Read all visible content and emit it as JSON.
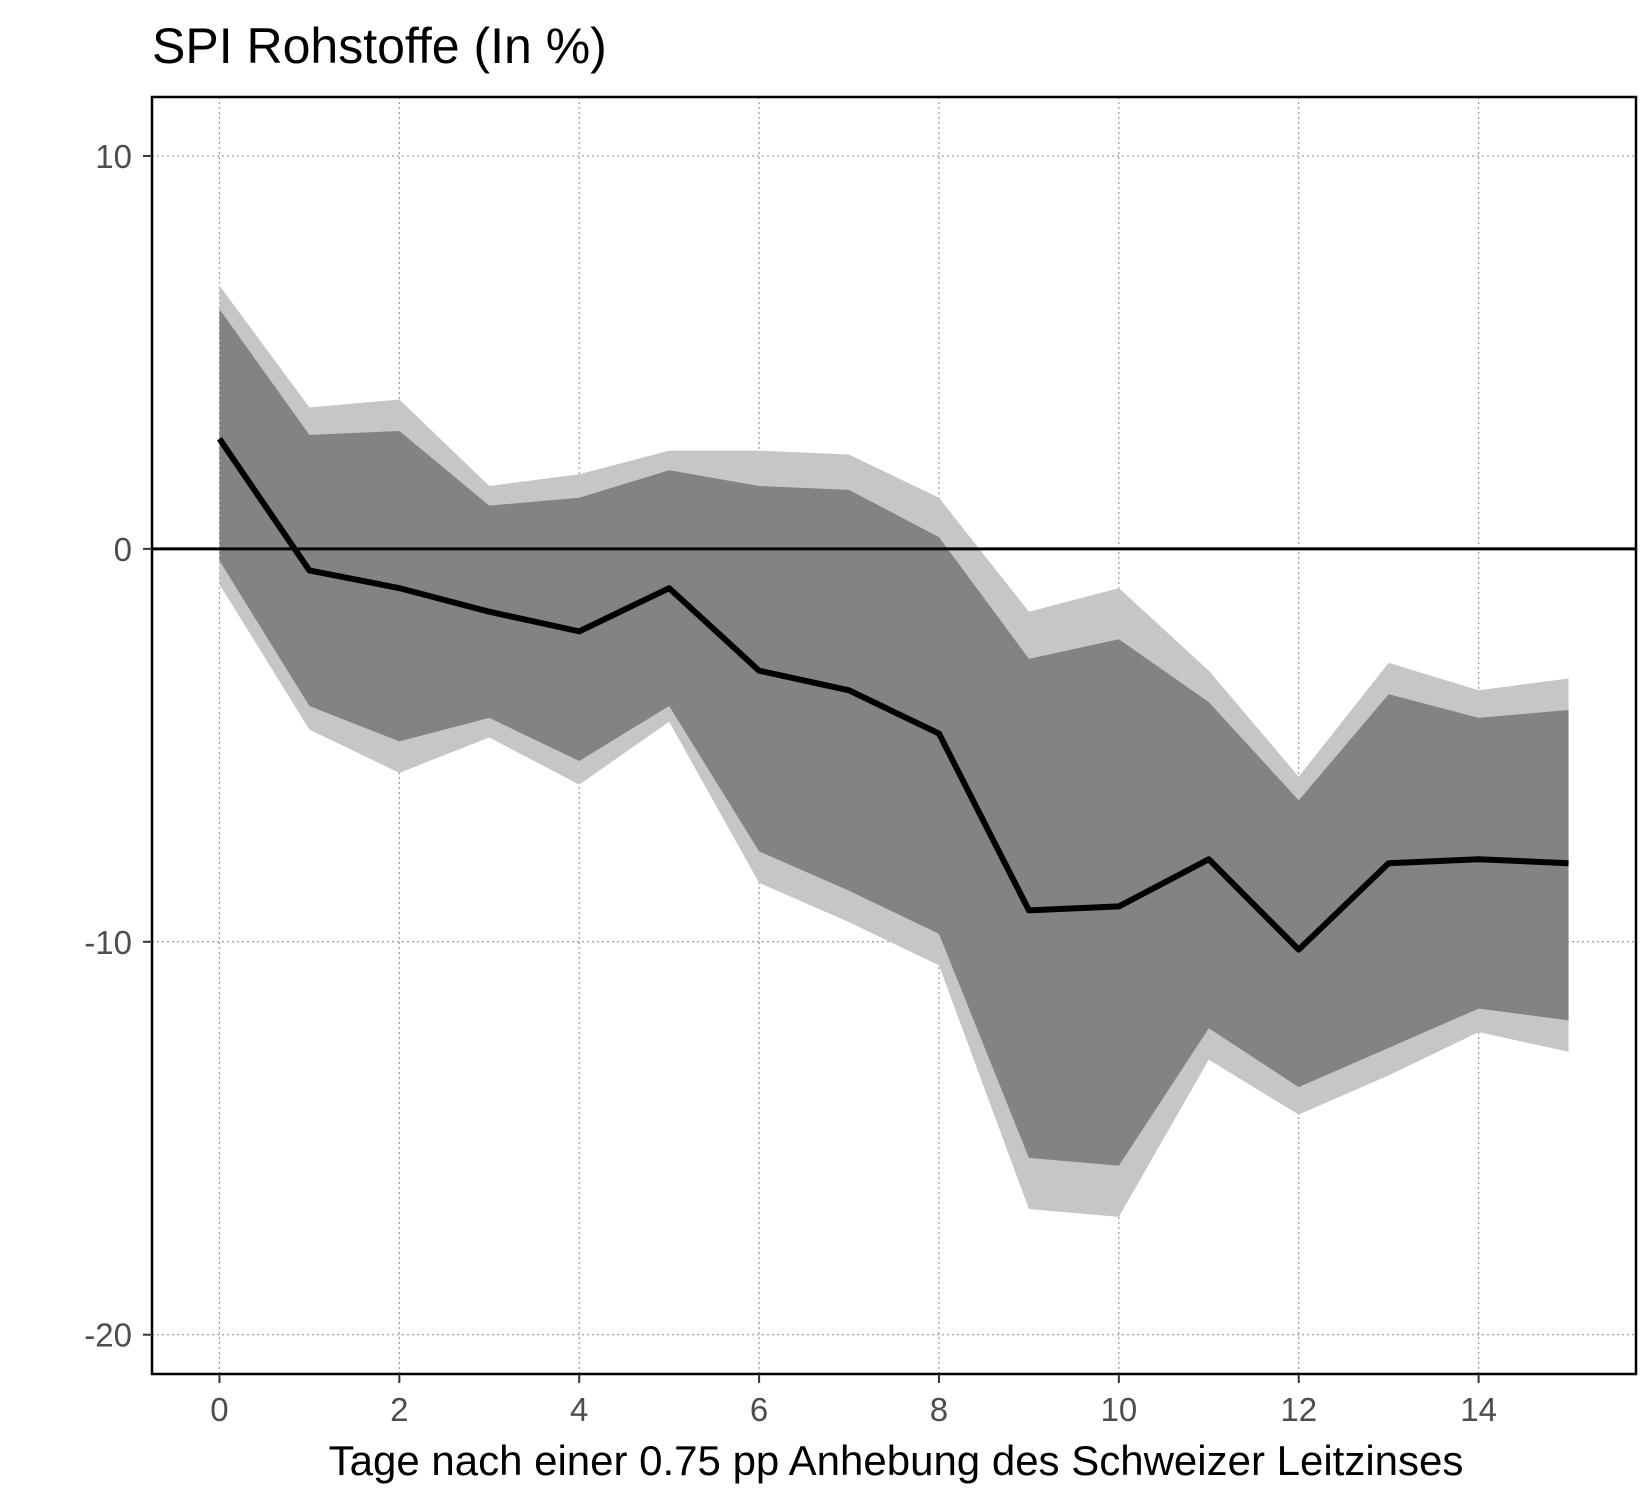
{
  "chart_data": {
    "type": "area",
    "title": "SPI Rohstoffe (In %)",
    "xlabel": "Tage nach einer 0.75 pp Anhebung des Schweizer Leitzinses",
    "ylabel": "",
    "xlim": [
      -0.75,
      15.75
    ],
    "ylim": [
      -21,
      11.5
    ],
    "x_ticks": [
      0,
      2,
      4,
      6,
      8,
      10,
      12,
      14
    ],
    "y_ticks": [
      10,
      0,
      -10,
      -20
    ],
    "grid": true,
    "reference_line": 0,
    "x": [
      0,
      1,
      2,
      3,
      4,
      5,
      6,
      7,
      8,
      9,
      10,
      11,
      12,
      13,
      14,
      15
    ],
    "series": [
      {
        "role": "outer-band",
        "upper": [
          6.7,
          3.6,
          3.8,
          1.6,
          1.9,
          2.5,
          2.5,
          2.4,
          1.3,
          -1.6,
          -1.0,
          -3.1,
          -5.8,
          -2.9,
          -3.6,
          -3.3
        ],
        "lower": [
          -0.9,
          -4.6,
          -5.7,
          -4.8,
          -6.0,
          -4.4,
          -8.5,
          -9.5,
          -10.6,
          -16.8,
          -17.0,
          -13.0,
          -14.4,
          -13.4,
          -12.3,
          -12.8
        ]
      },
      {
        "role": "inner-band",
        "upper": [
          6.1,
          2.9,
          3.0,
          1.1,
          1.3,
          2.0,
          1.6,
          1.5,
          0.3,
          -2.8,
          -2.3,
          -3.9,
          -6.4,
          -3.7,
          -4.3,
          -4.1
        ],
        "lower": [
          -0.3,
          -4.0,
          -4.9,
          -4.3,
          -5.4,
          -4.0,
          -7.7,
          -8.7,
          -9.8,
          -15.5,
          -15.7,
          -12.2,
          -13.7,
          -12.7,
          -11.7,
          -12.0
        ]
      },
      {
        "role": "point-estimate",
        "values": [
          2.8,
          -0.55,
          -1.0,
          -1.6,
          -2.1,
          -1.0,
          -3.1,
          -3.6,
          -4.7,
          -9.2,
          -9.1,
          -7.9,
          -10.2,
          -8.0,
          -7.9,
          -8.0
        ]
      }
    ],
    "colors": {
      "outer_band": "#c6c6c6",
      "inner_band": "#838383",
      "line": "#000000"
    }
  }
}
